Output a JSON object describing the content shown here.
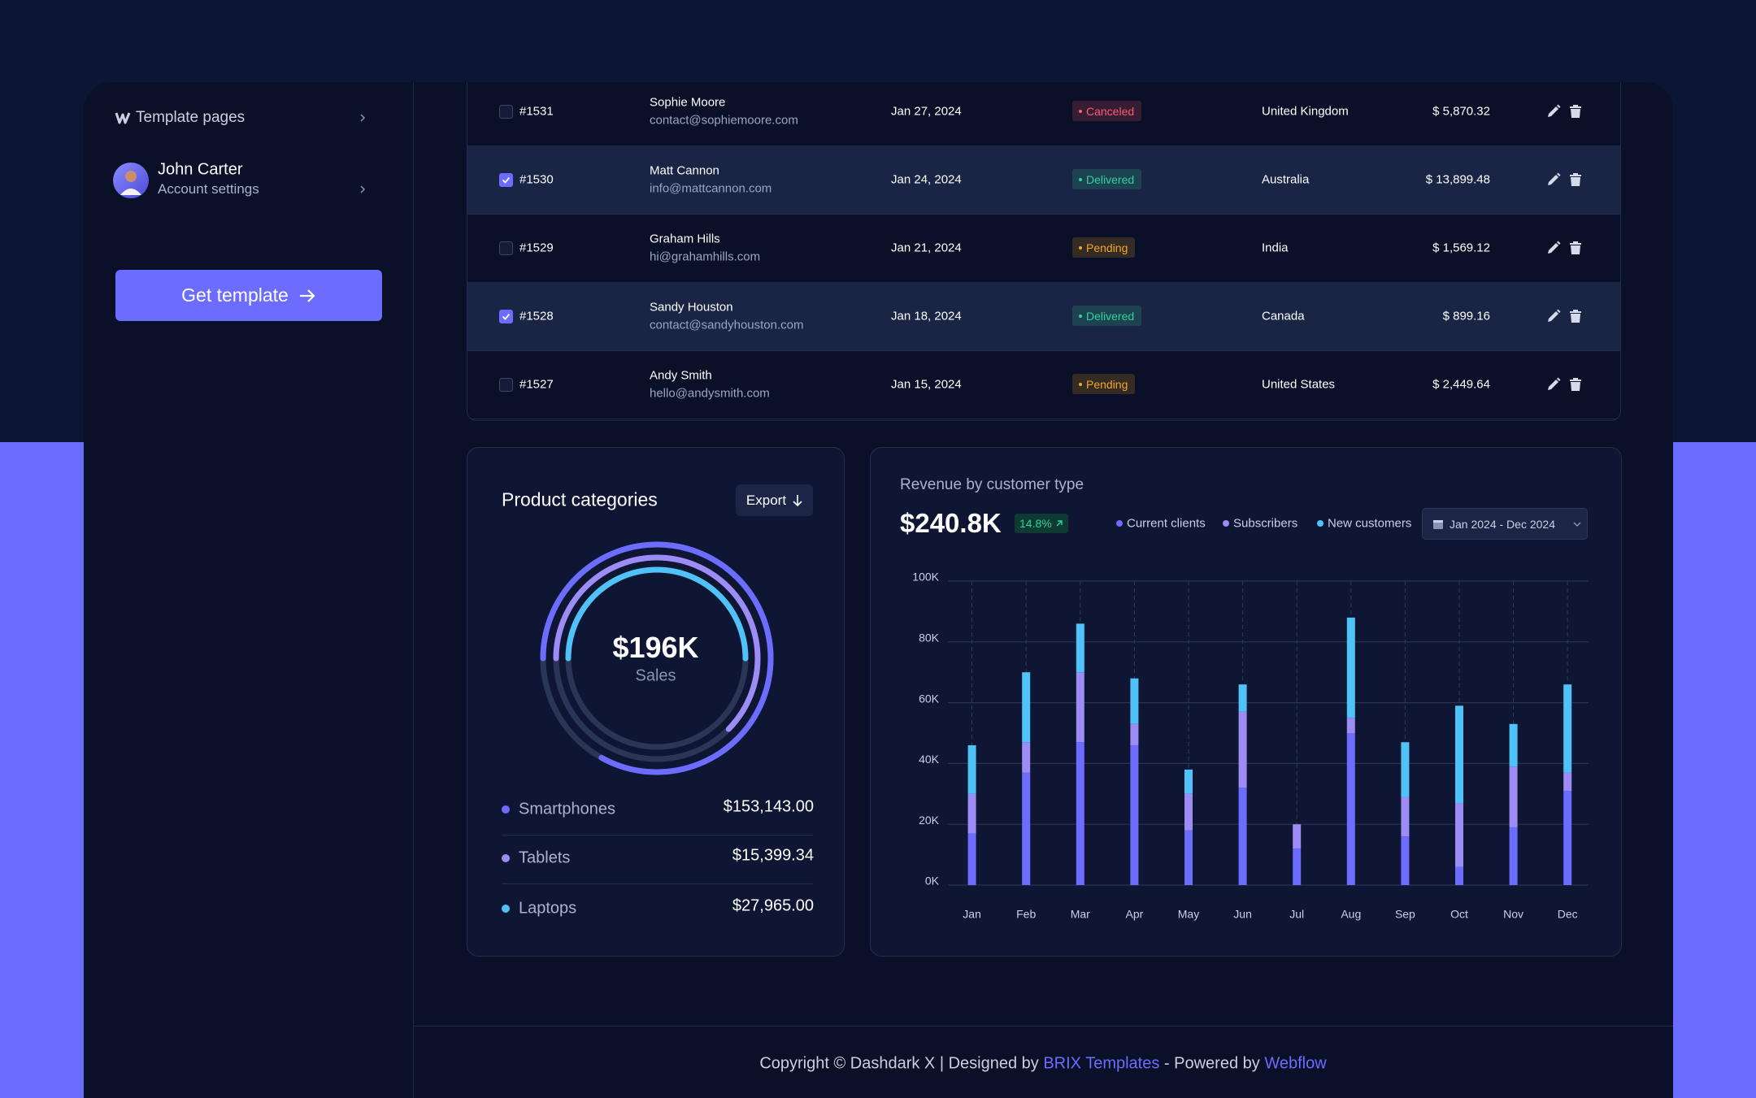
{
  "sidebar": {
    "menu_title": "Template pages",
    "user_name": "John Carter",
    "user_subtitle": "Account settings",
    "button": "Get template"
  },
  "table": {
    "rows": [
      {
        "id": "#1531",
        "name": "Sophie Moore",
        "email": "contact@sophiemoore.com",
        "date": "Jan 27, 2024",
        "status": "Canceled",
        "status_color": "#ff5a6e",
        "country": "United Kingdom",
        "amount": "$ 5,870.32",
        "selected": false
      },
      {
        "id": "#1530",
        "name": "Matt Cannon",
        "email": "info@mattcannon.com",
        "date": "Jan 24, 2024",
        "status": "Delivered",
        "status_color": "#2fd39a",
        "country": "Australia",
        "amount": "$ 13,899.48",
        "selected": true
      },
      {
        "id": "#1529",
        "name": "Graham Hills",
        "email": "hi@grahamhills.com",
        "date": "Jan 21, 2024",
        "status": "Pending",
        "status_color": "#f5a623",
        "country": "India",
        "amount": "$ 1,569.12",
        "selected": false
      },
      {
        "id": "#1528",
        "name": "Sandy Houston",
        "email": "contact@sandyhouston.com",
        "date": "Jan 18, 2024",
        "status": "Delivered",
        "status_color": "#2fd39a",
        "country": "Canada",
        "amount": "$ 899.16",
        "selected": true
      },
      {
        "id": "#1527",
        "name": "Andy Smith",
        "email": "hello@andysmith.com",
        "date": "Jan 15, 2024",
        "status": "Pending",
        "status_color": "#f5a623",
        "country": "United States",
        "amount": "$ 2,449.64",
        "selected": false
      }
    ]
  },
  "product_card": {
    "title": "Product categories",
    "export": "Export",
    "total": "$196K",
    "total_label": "Sales",
    "items": [
      {
        "name": "Smartphones",
        "value": "$153,143.00",
        "color": "#6c6cff"
      },
      {
        "name": "Tablets",
        "value": "$15,399.34",
        "color": "#9d8cf5"
      },
      {
        "name": "Laptops",
        "value": "$27,965.00",
        "color": "#4fc3f7"
      }
    ]
  },
  "chart_data": {
    "type": "bar",
    "stacked": true,
    "title": "Revenue by customer type",
    "total": "$240.8K",
    "change": "14.8%",
    "date_range": "Jan 2024 - Dec 2024",
    "categories": [
      "Jan",
      "Feb",
      "Mar",
      "Apr",
      "May",
      "Jun",
      "Jul",
      "Aug",
      "Sep",
      "Oct",
      "Nov",
      "Dec"
    ],
    "series": [
      {
        "name": "Current clients",
        "color": "#6c6cff",
        "values": [
          17,
          37,
          47,
          46,
          18,
          32,
          12,
          50,
          16,
          6,
          19,
          31
        ]
      },
      {
        "name": "Subscribers",
        "color": "#9d8cf5",
        "values": [
          13,
          10,
          23,
          7,
          12,
          25,
          8,
          5,
          13,
          21,
          20,
          6
        ]
      },
      {
        "name": "New customers",
        "color": "#4fc3f7",
        "values": [
          16,
          23,
          16,
          15,
          8,
          9,
          0,
          33,
          18,
          32,
          14,
          29
        ]
      }
    ],
    "ylim": [
      0,
      100
    ],
    "yticks": [
      {
        "value": 0,
        "label": "0K"
      },
      {
        "value": 20,
        "label": "20K"
      },
      {
        "value": 40,
        "label": "40K"
      },
      {
        "value": 60,
        "label": "60K"
      },
      {
        "value": 80,
        "label": "80K"
      },
      {
        "value": 100,
        "label": "100K"
      }
    ],
    "grid": true
  },
  "footer": {
    "text": "Copyright © Dashdark X | Designed by",
    "brix": "BRIX Templates",
    "powered": "- Powered by",
    "webflow": "Webflow"
  }
}
